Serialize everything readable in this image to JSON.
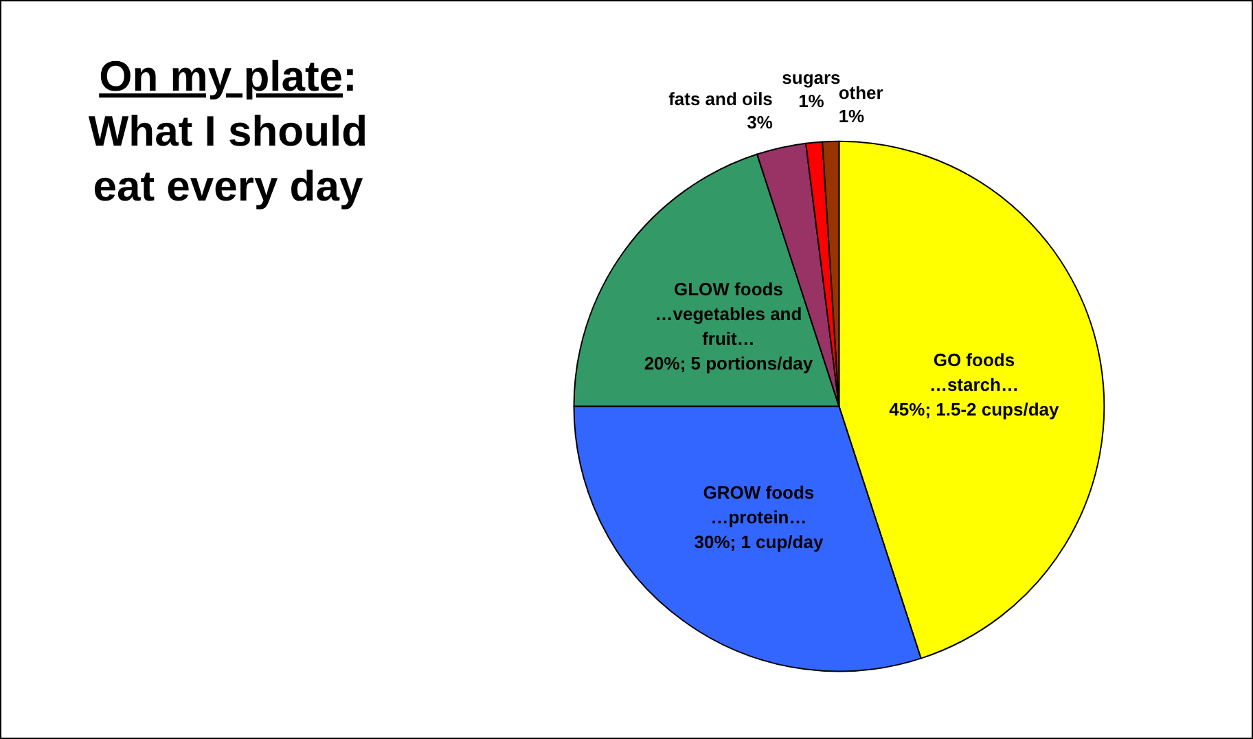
{
  "chart_data": {
    "type": "pie",
    "title": "On my plate: What I should eat every day",
    "categories": [
      "GO foods\n…starch…",
      "GROW foods\n…protein…",
      "GLOW foods\n…vegetables and\nfruit…",
      "fats and oils",
      "sugars",
      "other"
    ],
    "values": [
      45,
      30,
      20,
      3,
      1,
      1
    ],
    "colors": [
      "#ffff00",
      "#3366ff",
      "#339966",
      "#993366",
      "#ff0000",
      "#993300"
    ],
    "value_labels": [
      "45%; 1.5-2 cups/day",
      "30%; 1 cup/day",
      "20%; 5 portions/day",
      "3%",
      "1%",
      "1%"
    ],
    "legend": false
  }
}
